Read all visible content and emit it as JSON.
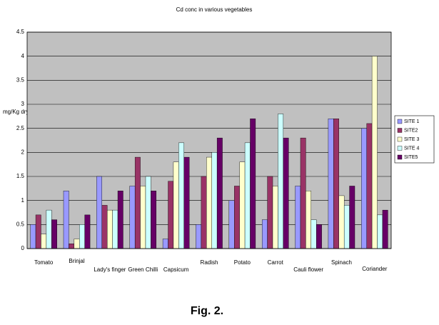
{
  "chart_data": {
    "type": "bar",
    "title": "Cd conc in various vegetables",
    "y_label": "mg/Kg dry weight",
    "categories": [
      "Tomato",
      "Brinjal",
      "Lady's finger",
      "Green Chilli",
      "Capsicum",
      "Radish",
      "Potato",
      "Carrot",
      "Cauli flower",
      "Spinach",
      "Coriander"
    ],
    "series": [
      {
        "name": "SITE 1",
        "color": "#9999ff",
        "values": [
          0.5,
          1.2,
          1.5,
          1.3,
          0.2,
          0.5,
          1.0,
          0.6,
          1.3,
          2.7,
          2.5
        ]
      },
      {
        "name": "SITE2",
        "color": "#993366",
        "values": [
          0.7,
          0.1,
          0.9,
          1.9,
          1.4,
          1.5,
          1.3,
          1.5,
          2.3,
          2.7,
          2.6
        ]
      },
      {
        "name": "SITE 3",
        "color": "#ffffcc",
        "values": [
          0.3,
          0.2,
          0.8,
          1.3,
          1.8,
          1.9,
          1.8,
          1.3,
          1.2,
          1.1,
          4.0
        ]
      },
      {
        "name": "SITE 4",
        "color": "#ccffff",
        "values": [
          0.8,
          0.5,
          0.8,
          1.5,
          2.2,
          2.0,
          2.2,
          2.8,
          0.6,
          0.9,
          0.7
        ]
      },
      {
        "name": "SITE5",
        "color": "#660066",
        "values": [
          0.6,
          0.7,
          1.2,
          1.2,
          1.9,
          2.3,
          2.7,
          2.3,
          0.5,
          1.3,
          0.8
        ]
      }
    ],
    "ylim": [
      0,
      4.5
    ],
    "yticks": [
      0,
      0.5,
      1,
      1.5,
      2,
      2.5,
      3,
      3.5,
      4,
      4.5
    ],
    "grid": true,
    "plot_background": "#c0c0c0",
    "legend": "right"
  },
  "caption": "Fig. 2."
}
